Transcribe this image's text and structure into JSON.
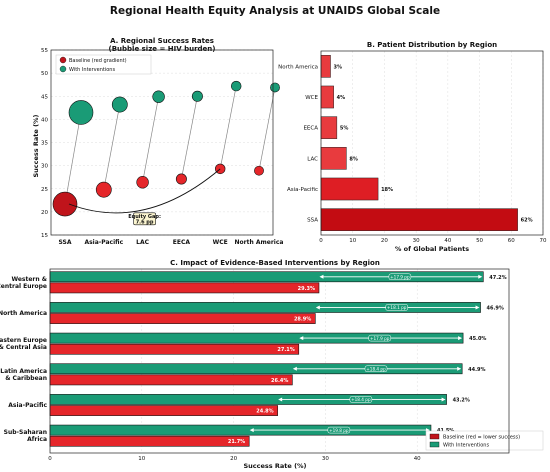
{
  "title": "Regional Health Equity Analysis at UNAIDS Global Scale",
  "colors": {
    "baseline": "#e5262a",
    "baseline_dark": "#c0141b",
    "intervention": "#1a9b76",
    "arrow": "#ffffff"
  },
  "chart_data": [
    {
      "id": "A",
      "type": "scatter",
      "title": "A. Regional Success Rates",
      "subtitle": "(Bubble size = HIV burden)",
      "xlabel": "",
      "ylabel": "Success Rate (%)",
      "ylim": [
        15,
        55
      ],
      "yticks": [
        15,
        20,
        25,
        30,
        35,
        40,
        45,
        50,
        55
      ],
      "categories": [
        "SSA",
        "Asia-Pacific",
        "LAC",
        "EECA",
        "WCE",
        "North America"
      ],
      "legend": {
        "position": "top-left",
        "baseline_label": "Baseline (red gradient)",
        "intervention_label": "With Interventions"
      },
      "series": [
        {
          "name": "Baseline (red gradient)",
          "values": [
            21.7,
            24.8,
            26.4,
            27.1,
            29.3,
            28.9
          ]
        },
        {
          "name": "With Interventions",
          "values": [
            41.5,
            43.2,
            44.9,
            45.0,
            47.2,
            46.9
          ]
        }
      ],
      "bubble_size": [
        62,
        18,
        8,
        5,
        4,
        3
      ],
      "annotation": {
        "text_line1": "Equity Gap:",
        "text_line2": "7.6 pp",
        "from_category": "SSA",
        "to_category": "WCE"
      },
      "grid": true
    },
    {
      "id": "B",
      "type": "bar",
      "orientation": "horizontal",
      "title": "B. Patient Distribution by Region",
      "xlabel": "% of Global Patients",
      "xlim": [
        0,
        70
      ],
      "xticks": [
        0,
        10,
        20,
        30,
        40,
        50,
        60,
        70
      ],
      "categories": [
        "SSA",
        "Asia-Pacific",
        "LAC",
        "EECA",
        "WCE",
        "North America"
      ],
      "values": [
        62,
        18,
        8,
        5,
        4,
        3
      ],
      "value_labels": [
        "62%",
        "18%",
        "8%",
        "5%",
        "4%",
        "3%"
      ],
      "grid": true
    },
    {
      "id": "C",
      "type": "bar",
      "orientation": "horizontal",
      "title": "C. Impact of Evidence-Based Interventions by Region",
      "xlabel": "Success Rate (%)",
      "xlim": [
        0,
        50
      ],
      "xticks": [
        0,
        10,
        20,
        30,
        40
      ],
      "categories": [
        "Western &\nCentral Europe",
        "North America",
        "Eastern Europe\n& Central Asia",
        "Latin America\n& Caribbean",
        "Asia-Pacific",
        "Sub-Saharan\nAfrica"
      ],
      "series": [
        {
          "name": "With Interventions",
          "values": [
            47.2,
            46.9,
            45.0,
            44.9,
            43.2,
            41.5
          ],
          "labels": [
            "47.2%",
            "46.9%",
            "45.0%",
            "44.9%",
            "43.2%",
            "41.5%"
          ]
        },
        {
          "name": "Baseline (red = lower success)",
          "values": [
            29.3,
            28.9,
            27.1,
            26.4,
            24.8,
            21.7
          ],
          "labels": [
            "29.3%",
            "28.9%",
            "27.1%",
            "26.4%",
            "24.8%",
            "21.7%"
          ]
        }
      ],
      "gains": [
        "+17.9 pp",
        "+18.1 pp",
        "+17.9 pp",
        "+18.4 pp",
        "+18.4 pp",
        "+19.8 pp"
      ],
      "legend": {
        "position": "bottom-right",
        "baseline_label": "Baseline (red = lower success)",
        "intervention_label": "With Interventions"
      },
      "grid": true
    }
  ]
}
